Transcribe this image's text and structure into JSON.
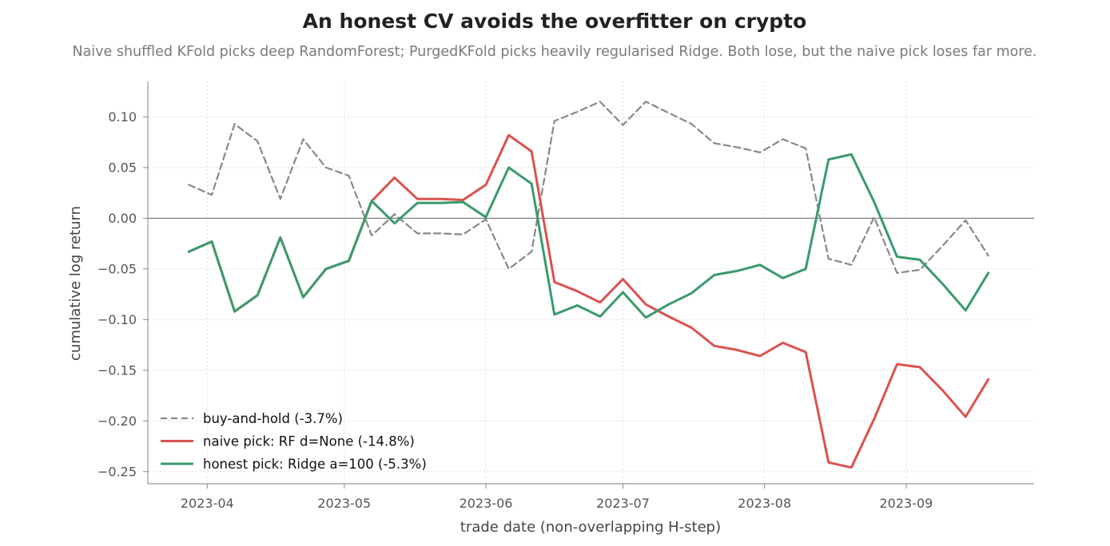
{
  "chart_data": {
    "type": "line",
    "title": "An honest CV avoids the overfitter on crypto",
    "subtitle": "Naive shuffled KFold picks deep RandomForest; PurgedKFold picks heavily regularised Ridge. Both lose, but the naive pick loses far more.",
    "xlabel": "trade date (non-overlapping H-step)",
    "ylabel": "cumulative log return",
    "xlim": [
      "2023-03-19",
      "2023-09-29"
    ],
    "ylim": [
      -0.262,
      0.135
    ],
    "x_ticks": [
      "2023-04-01",
      "2023-05-01",
      "2023-06-01",
      "2023-07-01",
      "2023-08-01",
      "2023-09-01"
    ],
    "x_tick_labels": [
      "2023-04",
      "2023-05",
      "2023-06",
      "2023-07",
      "2023-08",
      "2023-09"
    ],
    "y_ticks": [
      0.1,
      0.05,
      0.0,
      -0.05,
      -0.1,
      -0.15,
      -0.2,
      -0.25
    ],
    "y_tick_labels": [
      "0.10",
      "0.05",
      "0.00",
      "−0.05",
      "−0.10",
      "−0.15",
      "−0.20",
      "−0.25"
    ],
    "grid": true,
    "zero_line": 0,
    "legend_position": "lower-left",
    "x": [
      "2023-03-28",
      "2023-04-02",
      "2023-04-07",
      "2023-04-12",
      "2023-04-17",
      "2023-04-22",
      "2023-04-27",
      "2023-05-02",
      "2023-05-07",
      "2023-05-12",
      "2023-05-17",
      "2023-05-22",
      "2023-05-27",
      "2023-06-01",
      "2023-06-06",
      "2023-06-11",
      "2023-06-16",
      "2023-06-21",
      "2023-06-26",
      "2023-07-01",
      "2023-07-06",
      "2023-07-11",
      "2023-07-16",
      "2023-07-21",
      "2023-07-26",
      "2023-07-31",
      "2023-08-05",
      "2023-08-10",
      "2023-08-15",
      "2023-08-20",
      "2023-08-25",
      "2023-08-30",
      "2023-09-04",
      "2023-09-09",
      "2023-09-14",
      "2023-09-19"
    ],
    "series": [
      {
        "name": "buy-and-hold (-3.7%)",
        "color": "#888888",
        "dashed": true,
        "values": [
          0.033,
          0.023,
          0.093,
          0.076,
          0.019,
          0.078,
          0.05,
          0.042,
          -0.017,
          0.004,
          -0.015,
          -0.015,
          -0.016,
          -0.001,
          -0.05,
          -0.033,
          0.096,
          0.105,
          0.115,
          0.092,
          0.115,
          0.104,
          0.093,
          0.074,
          0.07,
          0.065,
          0.078,
          0.069,
          -0.04,
          -0.046,
          0.001,
          -0.054,
          -0.051,
          -0.027,
          -0.002,
          -0.037
        ]
      },
      {
        "name": "naive pick: RF d=None (-14.8%)",
        "color": "#d9534f",
        "dashed": false,
        "values": [
          -0.033,
          -0.023,
          -0.092,
          -0.076,
          -0.019,
          -0.078,
          -0.05,
          -0.042,
          0.017,
          0.04,
          0.019,
          0.019,
          0.018,
          0.033,
          0.082,
          0.066,
          -0.063,
          -0.072,
          -0.083,
          -0.06,
          -0.085,
          -0.097,
          -0.108,
          -0.126,
          -0.13,
          -0.136,
          -0.123,
          -0.132,
          -0.241,
          -0.246,
          -0.198,
          -0.144,
          -0.147,
          -0.17,
          -0.196,
          -0.159
        ]
      },
      {
        "name": "honest pick: Ridge a=100 (-5.3%)",
        "color": "#3a9a6b",
        "dashed": false,
        "values": [
          -0.033,
          -0.023,
          -0.092,
          -0.076,
          -0.019,
          -0.078,
          -0.05,
          -0.042,
          0.017,
          -0.005,
          0.015,
          0.015,
          0.016,
          0.001,
          0.05,
          0.034,
          -0.095,
          -0.086,
          -0.097,
          -0.073,
          -0.098,
          -0.085,
          -0.074,
          -0.056,
          -0.052,
          -0.046,
          -0.059,
          -0.05,
          0.058,
          0.063,
          0.016,
          -0.038,
          -0.041,
          -0.065,
          -0.091,
          -0.054
        ]
      }
    ]
  }
}
